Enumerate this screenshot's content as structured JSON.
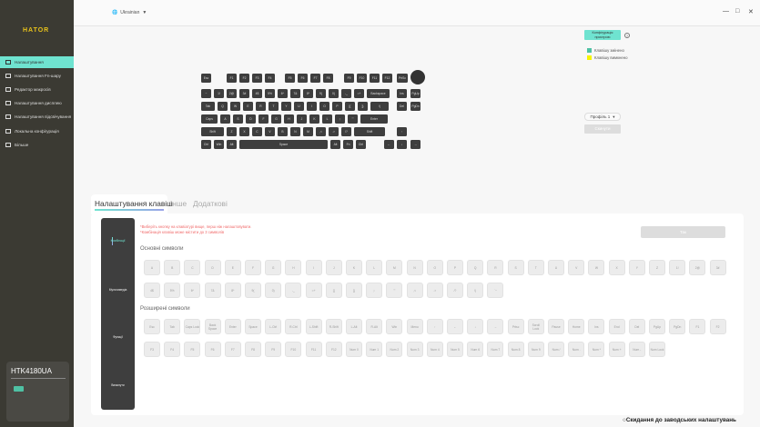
{
  "brand": "HATOR",
  "sidebar": {
    "items": [
      {
        "label": "Налаштування",
        "icon": "settings-icon",
        "active": true
      },
      {
        "label": "Налаштування Fn-шару",
        "icon": "fn-layer-icon"
      },
      {
        "label": "Редактор макросів",
        "icon": "macro-icon"
      },
      {
        "label": "Налаштування дисплею",
        "icon": "display-icon"
      },
      {
        "label": "Налаштування підсвічування",
        "icon": "lighting-icon"
      },
      {
        "label": "Локальна конфігурація",
        "icon": "local-config-icon"
      },
      {
        "label": "Більше",
        "icon": "more-icon"
      }
    ],
    "device": {
      "name": "HTK4180UA",
      "icon": "keyboard-icon"
    }
  },
  "topbar": {
    "language": "Ukrainian",
    "window": {
      "minimize": "—",
      "maximize": "□",
      "close": "✕"
    }
  },
  "keyboard": {
    "rows": [
      [
        "Esc",
        "F1",
        "F2",
        "F3",
        "F4",
        "F5",
        "F6",
        "F7",
        "F8",
        "F9",
        "F10",
        "F11",
        "F12",
        "PrtSc"
      ],
      [
        "~",
        "1!",
        "2@",
        "3#",
        "4$",
        "5%",
        "6^",
        "7&",
        "8*",
        "9(",
        "0)",
        "-_",
        "=+",
        "Backspace",
        "Ins",
        "PgUp"
      ],
      [
        "Tab",
        "Q",
        "W",
        "E",
        "R",
        "T",
        "Y",
        "U",
        "I",
        "O",
        "P",
        "[{",
        "]}",
        "\\|",
        "Del",
        "PgDn"
      ],
      [
        "Caps",
        "A",
        "S",
        "D",
        "F",
        "G",
        "H",
        "J",
        "K",
        "L",
        ";:",
        "'\"",
        "Enter"
      ],
      [
        "Shift",
        "Z",
        "X",
        "C",
        "V",
        "B",
        "N",
        "M",
        ",<",
        ".>",
        "/?",
        "Shift",
        "↑"
      ],
      [
        "Ctrl",
        "Win",
        "Alt",
        "Space",
        "Alt",
        "Fn",
        "Ctrl",
        "←",
        "↓",
        "→"
      ]
    ]
  },
  "device_config": {
    "button": "Конфігурація пристрою",
    "help": "?",
    "legend": [
      {
        "label": "Клавішу змінено",
        "color": "#4fc1a4"
      },
      {
        "label": "Клавішу вимкнено",
        "color": "#f5f500"
      }
    ],
    "profile": "Профіль 1",
    "reset": "Скинути"
  },
  "tabs": [
    {
      "label": "Налаштування клавіш",
      "active": true
    },
    {
      "label": "Інше"
    },
    {
      "label": "Додаткові"
    }
  ],
  "panel": {
    "side_items": [
      "Комбінації",
      "Мультимедіа",
      "Функції",
      "Вимкнути"
    ],
    "notes": [
      "*Виберіть кнопку на клавіатурі вище, перш ніж налаштовувати.",
      "*Комбінація клавіш може містити до 3 символів"
    ],
    "ok": "Так",
    "basic_title": "Основні символи",
    "basic": [
      [
        "A",
        "B",
        "C",
        "D",
        "E",
        "F",
        "G",
        "H",
        "I",
        "J",
        "K",
        "L",
        "M",
        "N",
        "O",
        "P",
        "Q",
        "R",
        "S",
        "T",
        "U",
        "V",
        "W",
        "X",
        "Y",
        "Z",
        "1!",
        "2@",
        "3#"
      ],
      [
        "4$",
        "5%",
        "6^",
        "7&",
        "8*",
        "9(",
        "0)",
        "-_",
        "=+",
        "[{",
        "]}",
        ";:",
        "'\"",
        ",<",
        ".>",
        "/?",
        "\\|",
        "`~"
      ]
    ],
    "ext_title": "Розширені символи",
    "ext": [
      [
        "Esc",
        "Tab",
        "Caps Lock",
        "Back Space",
        "Enter",
        "Space",
        "L-Ctrl",
        "R-Ctrl",
        "L-Shift",
        "R-Shift",
        "L-Alt",
        "R-Alt",
        "Win",
        "Menu",
        "↑",
        "←",
        "↓",
        "→",
        "Prtsc",
        "Scroll Lock",
        "Pause",
        "Home",
        "Ins",
        "End",
        "Del",
        "PgUp",
        "PgDn",
        "F1",
        "F2"
      ],
      [
        "F3",
        "F4",
        "F5",
        "F6",
        "F7",
        "F8",
        "F9",
        "F10",
        "F11",
        "F12",
        "Num 0",
        "Num 1",
        "Num 2",
        "Num 3",
        "Num 4",
        "Num 5",
        "Num 6",
        "Num 7",
        "Num 8",
        "Num 9",
        "Num /",
        "Num .",
        "Num *",
        "Num +",
        "Num -",
        "Num Lock"
      ]
    ]
  },
  "factory_reset": "Скидання до заводських налаштувань",
  "colors": {
    "accent": "#6fe3d0",
    "sidebar": "#3b3a33",
    "brand": "#e8c21a",
    "key": "#3e3e3e"
  }
}
